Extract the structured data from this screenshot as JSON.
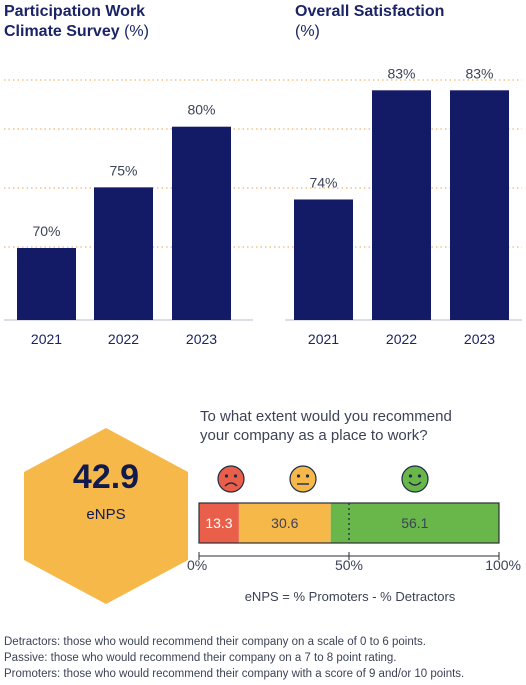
{
  "titles": {
    "participation_bold_1": "Participation Work",
    "participation_bold_2": "Climate Survey",
    "participation_unit": "(%)",
    "satisfaction_bold": "Overall Satisfaction",
    "satisfaction_unit": "(%)"
  },
  "enps": {
    "value": "42.9",
    "label": "eNPS",
    "question_line1": "To what extent would you recommend",
    "question_line2": "your company as a place to work?",
    "formula": "eNPS = % Promoters - % Detractors"
  },
  "notes": [
    "Detractors: those who would recommend their company on a scale of 0 to 6 points.",
    "Passive: those who would recommend their company on a 7 to 8 point rating.",
    "Promoters: those who would recommend their company with a score of 9 and/or 10 points."
  ],
  "colors": {
    "bar": "#131a66",
    "gridline": "#f0a24a",
    "detractor": "#ea5f4a",
    "passive": "#f7b84a",
    "promoter": "#69b74a",
    "hexagon": "#f7b84a"
  },
  "chart_data": [
    {
      "type": "bar",
      "title": "Participation Work Climate Survey (%)",
      "categories": [
        "2021",
        "2022",
        "2023"
      ],
      "values": [
        70,
        75,
        80
      ],
      "value_labels": [
        "70%",
        "75%",
        "80%"
      ],
      "grid": true
    },
    {
      "type": "bar",
      "title": "Overall Satisfaction (%)",
      "categories": [
        "2021",
        "2022",
        "2023"
      ],
      "values": [
        74,
        83,
        83
      ],
      "value_labels": [
        "74%",
        "83%",
        "83%"
      ],
      "grid": true
    },
    {
      "type": "bar",
      "orientation": "horizontal-stacked",
      "segments": [
        {
          "name": "Detractors",
          "value": 13.3,
          "label": "13.3",
          "icon": "sad-face-icon"
        },
        {
          "name": "Passive",
          "value": 30.6,
          "label": "30.6",
          "icon": "neutral-face-icon"
        },
        {
          "name": "Promoters",
          "value": 56.1,
          "label": "56.1",
          "icon": "happy-face-icon"
        }
      ],
      "axis_ticks": [
        "0%",
        "50%",
        "100%"
      ],
      "xlim": [
        0,
        100
      ]
    }
  ]
}
